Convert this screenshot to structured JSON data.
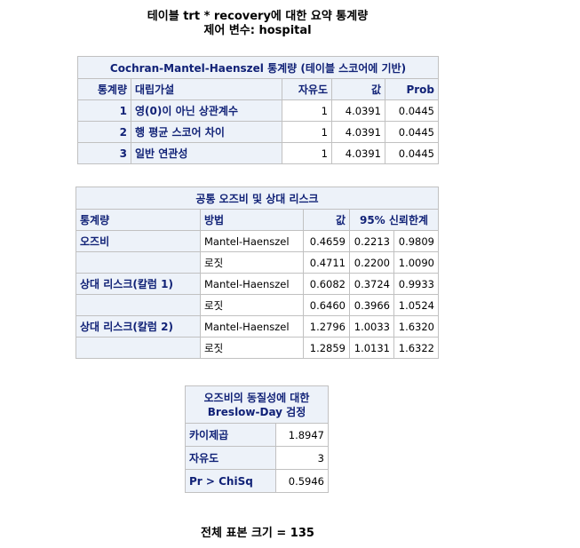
{
  "header": {
    "title": "테이블 trt * recovery에 대한 요약 통계량",
    "subtitle": "제어 변수: hospital"
  },
  "cmh": {
    "caption": "Cochran-Mantel-Haenszel 통계량 (테이블 스코어에 기반)",
    "columns": [
      "통계량",
      "대립가설",
      "자유도",
      "값",
      "Prob"
    ],
    "rows": [
      {
        "stat": "1",
        "alt": "영(0)이 아닌 상관계수",
        "df": "1",
        "value": "4.0391",
        "prob": "0.0445"
      },
      {
        "stat": "2",
        "alt": "행 평균 스코어 차이",
        "df": "1",
        "value": "4.0391",
        "prob": "0.0445"
      },
      {
        "stat": "3",
        "alt": "일반 연관성",
        "df": "1",
        "value": "4.0391",
        "prob": "0.0445"
      }
    ]
  },
  "odds": {
    "caption": "공통 오즈비 및 상대 리스크",
    "columns": [
      "통계량",
      "방법",
      "값",
      "95% 신뢰한계"
    ],
    "rows": [
      {
        "stat": "오즈비",
        "method": "Mantel-Haenszel",
        "value": "0.4659",
        "lower": "0.2213",
        "upper": "0.9809"
      },
      {
        "stat": "",
        "method": "로짓",
        "value": "0.4711",
        "lower": "0.2200",
        "upper": "1.0090"
      },
      {
        "stat": "상대 리스크(칼럼 1)",
        "method": "Mantel-Haenszel",
        "value": "0.6082",
        "lower": "0.3724",
        "upper": "0.9933"
      },
      {
        "stat": "",
        "method": "로짓",
        "value": "0.6460",
        "lower": "0.3966",
        "upper": "1.0524"
      },
      {
        "stat": "상대 리스크(칼럼 2)",
        "method": "Mantel-Haenszel",
        "value": "1.2796",
        "lower": "1.0033",
        "upper": "1.6320"
      },
      {
        "stat": "",
        "method": "로짓",
        "value": "1.2859",
        "lower": "1.0131",
        "upper": "1.6322"
      }
    ]
  },
  "breslow": {
    "caption_line1": "오즈비의 동질성에 대한",
    "caption_line2": "Breslow-Day 검정",
    "rows": [
      {
        "label": "카이제곱",
        "value": "1.8947"
      },
      {
        "label": "자유도",
        "value": "3"
      },
      {
        "label": "Pr > ChiSq",
        "value": "0.5946"
      }
    ]
  },
  "footer": {
    "text": "전체 표본 크기 = 135"
  },
  "colors": {
    "header_bg": "#edf2f9",
    "header_text": "#112277",
    "border": "#c1c1c1"
  }
}
